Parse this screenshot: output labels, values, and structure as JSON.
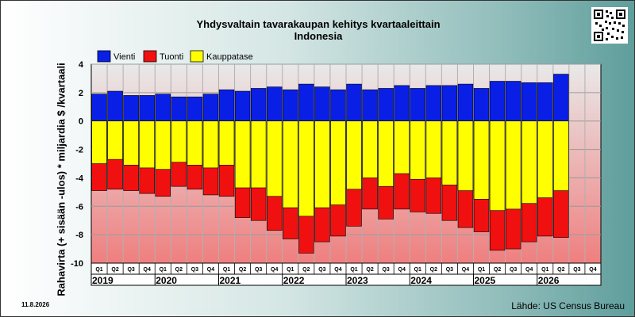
{
  "header": {
    "title_line1": "Yhdysvaltain tavarakaupan kehitys kvartaaleittain",
    "title_line2": "Indonesia"
  },
  "footer": {
    "date": "11.8.2026",
    "source": "Lähde: US Census Bureau"
  },
  "colors": {
    "vienti": "#0a1fe6",
    "tuonti": "#f01010",
    "kauppatase": "#ffff00",
    "plot_bg_top": "#e9e9e9",
    "plot_bg_bottom": "#ef7f7f"
  },
  "chart_data": {
    "type": "bar",
    "title": "Yhdysvaltain tavarakaupan kehitys kvartaaleittain",
    "subtitle": "Indonesia",
    "xlabel": "",
    "ylabel": "Rahavirta (+ sisään -ulos)  * miljardia $ /kvartaali",
    "ylim": [
      -10,
      4
    ],
    "yticks": [
      "4",
      "2",
      "0",
      "-2",
      "-4",
      "-6",
      "-8",
      "-10"
    ],
    "grid": true,
    "legend_position": "top-left",
    "categories": [
      "Q1",
      "Q2",
      "Q3",
      "Q4",
      "Q1",
      "Q2",
      "Q3",
      "Q4",
      "Q1",
      "Q2",
      "Q3",
      "Q4",
      "Q1",
      "Q2",
      "Q3",
      "Q4",
      "Q1",
      "Q2",
      "Q3",
      "Q4",
      "Q1",
      "Q2",
      "Q3",
      "Q4",
      "Q1",
      "Q2",
      "Q3",
      "Q4",
      "Q1",
      "Q2",
      "Q3",
      "Q4"
    ],
    "years": [
      "2019",
      "2020",
      "2021",
      "2022",
      "2023",
      "2024",
      "2025",
      "2026"
    ],
    "series": [
      {
        "name": "Vienti",
        "values": [
          1.9,
          2.1,
          1.8,
          1.8,
          1.9,
          1.7,
          1.7,
          1.9,
          2.2,
          2.1,
          2.3,
          2.4,
          2.2,
          2.6,
          2.4,
          2.2,
          2.6,
          2.2,
          2.3,
          2.5,
          2.3,
          2.5,
          2.5,
          2.6,
          2.3,
          2.8,
          2.8,
          2.7,
          2.7,
          3.3,
          null,
          null
        ]
      },
      {
        "name": "Tuonti",
        "values": [
          -4.9,
          -4.8,
          -4.9,
          -5.1,
          -5.3,
          -4.6,
          -4.8,
          -5.2,
          -5.3,
          -6.8,
          -7.0,
          -7.7,
          -8.3,
          -9.3,
          -8.5,
          -8.1,
          -7.4,
          -6.2,
          -6.9,
          -6.2,
          -6.4,
          -6.5,
          -7.0,
          -7.5,
          -7.8,
          -9.1,
          -9.0,
          -8.5,
          -8.1,
          -8.2,
          null,
          null
        ]
      },
      {
        "name": "Kauppatase",
        "values": [
          -3.0,
          -2.7,
          -3.1,
          -3.3,
          -3.4,
          -2.9,
          -3.1,
          -3.3,
          -3.1,
          -4.7,
          -4.7,
          -5.3,
          -6.1,
          -6.7,
          -6.1,
          -5.9,
          -4.8,
          -4.0,
          -4.6,
          -3.7,
          -4.1,
          -4.0,
          -4.5,
          -4.9,
          -5.5,
          -6.3,
          -6.2,
          -5.8,
          -5.4,
          -4.9,
          null,
          null
        ]
      }
    ]
  }
}
